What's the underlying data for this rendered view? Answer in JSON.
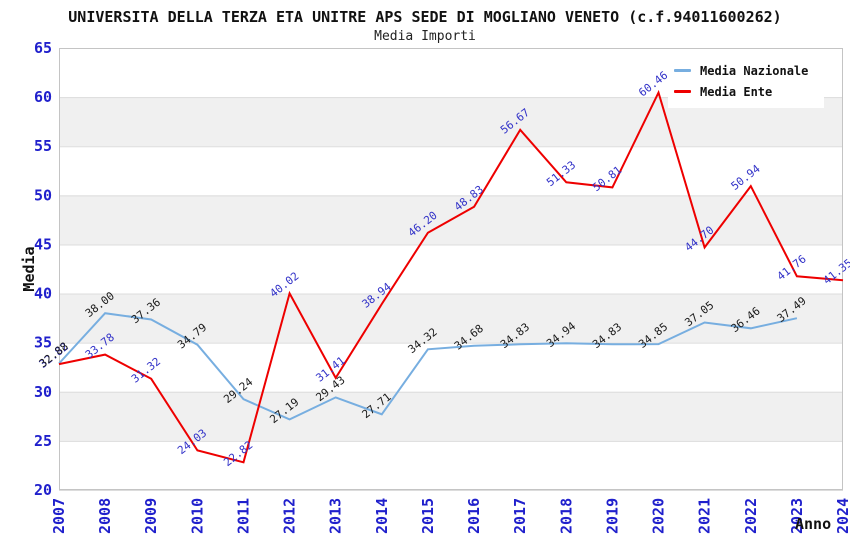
{
  "chart_data": {
    "type": "line",
    "title": "UNIVERSITA DELLA TERZA ETA UNITRE APS SEDE DI MOGLIANO VENETO (c.f.94011600262)",
    "subtitle": "Media Importi",
    "xlabel": "Anno",
    "ylabel": "Media",
    "x": [
      2007,
      2008,
      2009,
      2010,
      2011,
      2012,
      2013,
      2014,
      2015,
      2016,
      2017,
      2018,
      2019,
      2020,
      2021,
      2022,
      2023,
      2024
    ],
    "ylim": [
      20,
      65
    ],
    "yticks": [
      20,
      25,
      30,
      35,
      40,
      45,
      50,
      55,
      60,
      65
    ],
    "gray_bands": [
      [
        25,
        30
      ],
      [
        35,
        40
      ],
      [
        45,
        50
      ],
      [
        55,
        60
      ]
    ],
    "grid": "horizontal",
    "legend_position": "top-right",
    "series": [
      {
        "name": "Media Nazionale",
        "color": "#77AEE0",
        "label_color": "#1A1A1A",
        "values": [
          32.88,
          38.0,
          37.36,
          34.79,
          29.24,
          27.19,
          29.43,
          27.71,
          34.32,
          34.68,
          34.83,
          34.94,
          34.83,
          34.85,
          37.05,
          36.46,
          37.49,
          null
        ]
      },
      {
        "name": "Media Ente",
        "color": "#EE0000",
        "label_color": "#3232C8",
        "values": [
          32.82,
          33.78,
          31.32,
          24.03,
          22.82,
          40.02,
          31.41,
          38.94,
          46.2,
          48.83,
          56.67,
          51.33,
          50.81,
          60.46,
          44.7,
          50.94,
          41.76,
          41.35
        ]
      }
    ],
    "colors": {
      "band": "#F0F0F0",
      "gridline": "#DCDCDC",
      "plot_border": "#C4C4C4",
      "tick_label": "#2020CC",
      "axis_title": "#111111"
    }
  }
}
